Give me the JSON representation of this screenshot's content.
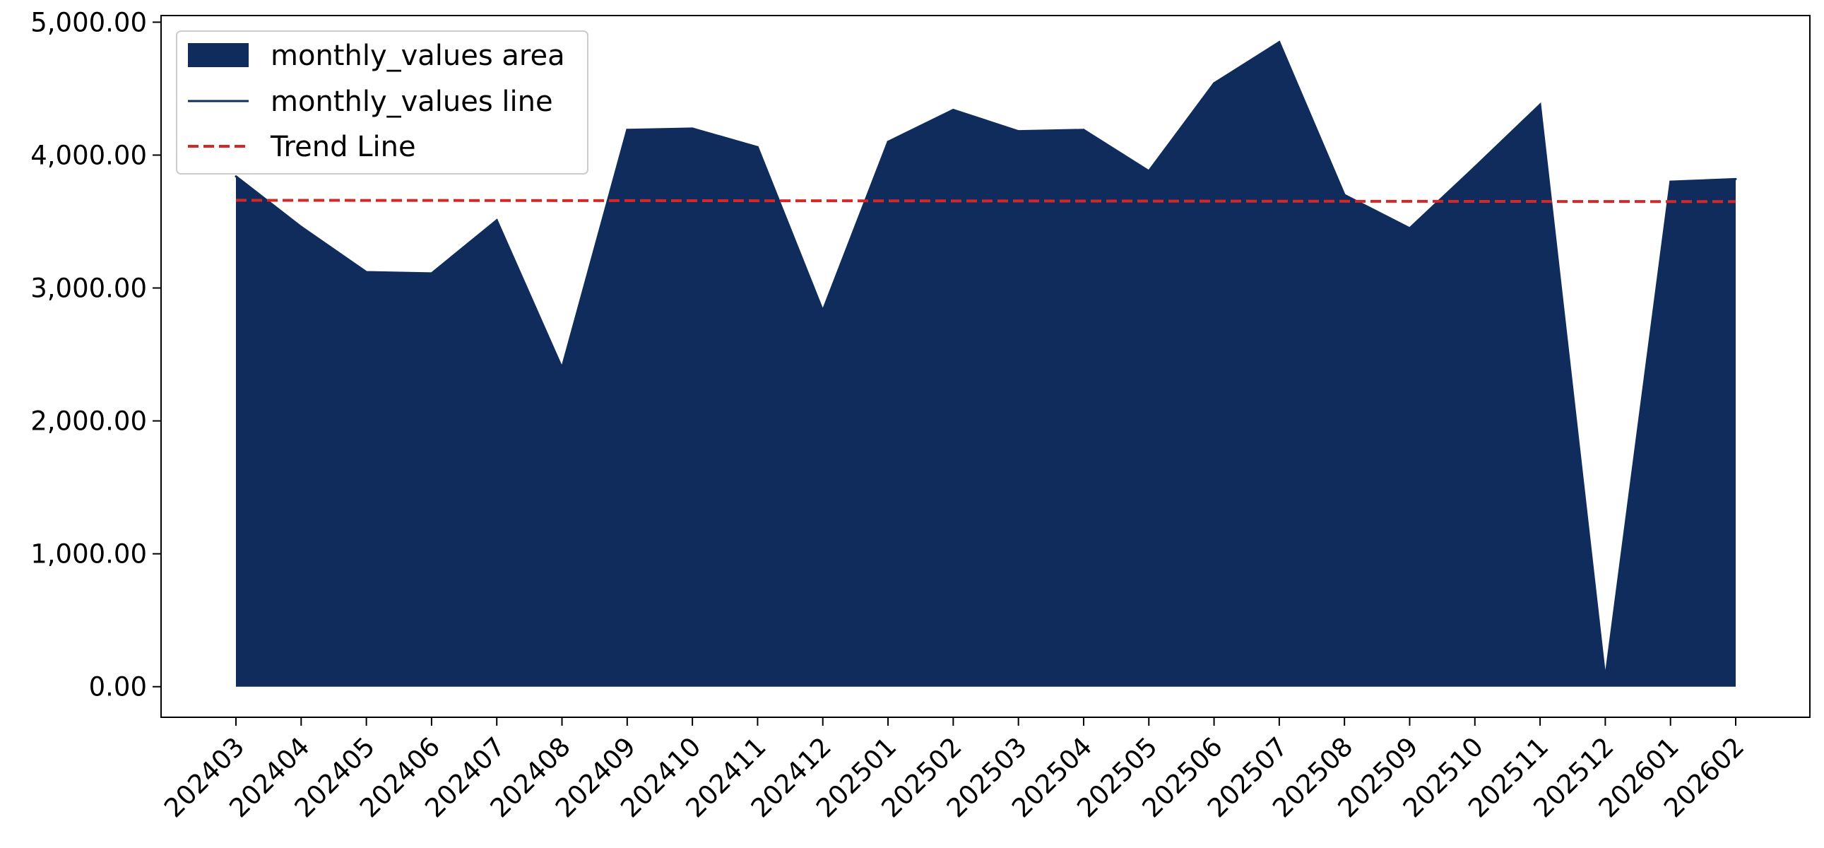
{
  "chart_data": {
    "type": "area",
    "categories": [
      "202403",
      "202404",
      "202405",
      "202406",
      "202407",
      "202408",
      "202409",
      "202410",
      "202411",
      "202412",
      "202501",
      "202502",
      "202503",
      "202504",
      "202505",
      "202506",
      "202507",
      "202508",
      "202509",
      "202510",
      "202511",
      "202512",
      "202601",
      "202602"
    ],
    "series": [
      {
        "name": "monthly_values area",
        "kind": "area",
        "color": "#0f2c5c",
        "values": [
          3840,
          3460,
          3120,
          3110,
          3510,
          2400,
          4190,
          4200,
          4060,
          2830,
          4100,
          4340,
          4180,
          4190,
          3880,
          4540,
          4850,
          3700,
          3450,
          3910,
          4380,
          60,
          3800,
          3820
        ]
      },
      {
        "name": "monthly_values line",
        "kind": "line",
        "color": "#0f2c5c",
        "values": [
          3840,
          3460,
          3120,
          3110,
          3510,
          2400,
          4190,
          4200,
          4060,
          2830,
          4100,
          4340,
          4180,
          4190,
          3880,
          4540,
          4850,
          3700,
          3450,
          3910,
          4380,
          60,
          3800,
          3820
        ]
      },
      {
        "name": "Trend Line",
        "kind": "trend",
        "color": "#d62728",
        "dashed": true,
        "values": [
          3660,
          3659.6,
          3659.1,
          3658.7,
          3658.3,
          3657.8,
          3657.4,
          3657,
          3656.5,
          3656.1,
          3655.7,
          3655.2,
          3654.8,
          3654.3,
          3653.9,
          3653.5,
          3653,
          3652.6,
          3652.2,
          3651.7,
          3651.3,
          3650.9,
          3650.4,
          3650
        ]
      }
    ],
    "ylim": [
      -230,
      5050
    ],
    "yticks": [
      0,
      1000,
      2000,
      3000,
      4000,
      5000
    ],
    "ytick_labels": [
      "0.00",
      "1,000.00",
      "2,000.00",
      "3,000.00",
      "4,000.00",
      "5,000.00"
    ],
    "grid": false,
    "legend_position": "top-left",
    "title": "",
    "xlabel": "",
    "ylabel": ""
  }
}
